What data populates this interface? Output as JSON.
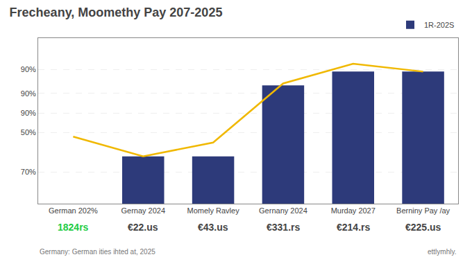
{
  "chart_data": {
    "type": "bar",
    "title": "Frecheany, Moomethy Pay 207-2025",
    "categories": [
      "German 202%",
      "Gernay 2024",
      "Momely Ravley",
      "Gernany 2024",
      "Murday 2027",
      "Berniny Pay /ay"
    ],
    "series": [
      {
        "name": "1R-202S",
        "type": "bar",
        "color": "#2d3a7a",
        "values": [
          null,
          0.72,
          0.72,
          0.9,
          0.935,
          0.935
        ]
      },
      {
        "type": "line",
        "color": "#f0b800",
        "values": [
          0.77,
          0.72,
          0.755,
          0.905,
          0.955,
          0.935
        ]
      }
    ],
    "ylim": [
      0.6,
      1.02
    ],
    "yticks": [
      {
        "value": 0.68,
        "label": "70%"
      },
      {
        "value": 0.78,
        "label": "50%"
      },
      {
        "value": 0.83,
        "label": "90%"
      },
      {
        "value": 0.88,
        "label": "90%"
      },
      {
        "value": 0.94,
        "label": "90%"
      }
    ],
    "grid": true,
    "legend": "top right",
    "annotations": [
      {
        "text": "1824rs",
        "x": "German 202%",
        "color": "#22cc44"
      },
      {
        "text": "€22.us",
        "x": "Gernay 2024"
      },
      {
        "text": "€43.us",
        "x": "Momely Ravley"
      },
      {
        "text": "€331.rs",
        "x": "Gernany 2024"
      },
      {
        "text": "€214.rs",
        "x": "Murday 2027"
      },
      {
        "text": "€225.us",
        "x": "Berniny Pay /ay"
      },
      {
        "text": "Germany: German ities ihted at, 2025"
      },
      {
        "text": "ettlymhly."
      }
    ]
  }
}
